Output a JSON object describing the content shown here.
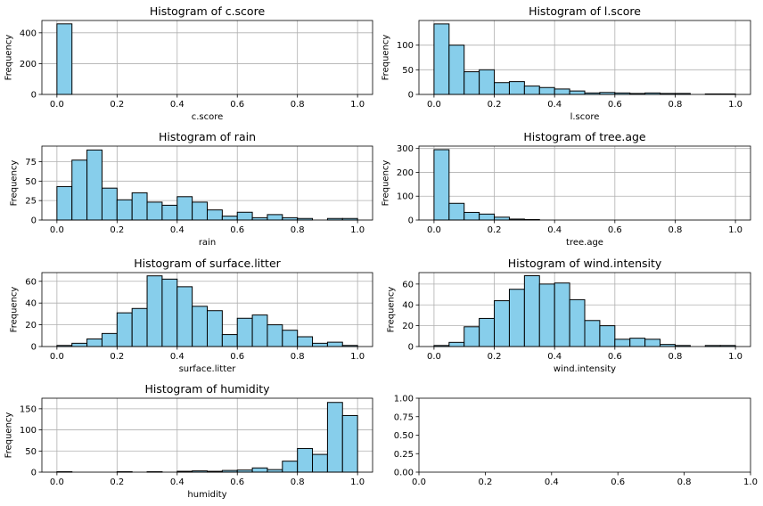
{
  "chart_data": [
    {
      "type": "bar",
      "title": "Histogram of c.score",
      "xlabel": "c.score",
      "ylabel": "Frequency",
      "xlim": [
        -0.05,
        1.05
      ],
      "ylim": [
        0,
        480
      ],
      "xticks": [
        0.0,
        0.2,
        0.4,
        0.6,
        0.8,
        1.0
      ],
      "xtick_labels": [
        "0.0",
        "0.2",
        "0.4",
        "0.6",
        "0.8",
        "1.0"
      ],
      "yticks": [
        0,
        200,
        400
      ],
      "ytick_labels": [
        "0",
        "200",
        "400"
      ],
      "bin_edges": [
        0.0,
        0.05,
        0.1,
        0.15,
        0.2,
        0.25,
        0.3,
        0.35,
        0.4,
        0.45,
        0.5,
        0.55,
        0.6,
        0.65,
        0.7,
        0.75,
        0.8,
        0.85,
        0.9,
        0.95,
        1.0
      ],
      "counts": [
        458,
        0,
        0,
        0,
        0,
        0,
        0,
        0,
        0,
        0,
        0,
        0,
        0,
        0,
        0,
        0,
        0,
        0,
        0,
        0
      ],
      "grid": true,
      "bar_color": "#87ceeb",
      "edge_color": "#000000"
    },
    {
      "type": "bar",
      "title": "Histogram of l.score",
      "xlabel": "l.score",
      "ylabel": "Frequency",
      "xlim": [
        -0.05,
        1.05
      ],
      "ylim": [
        0,
        150
      ],
      "xticks": [
        0.0,
        0.2,
        0.4,
        0.6,
        0.8,
        1.0
      ],
      "xtick_labels": [
        "0.0",
        "0.2",
        "0.4",
        "0.6",
        "0.8",
        "1.0"
      ],
      "yticks": [
        0,
        50,
        100
      ],
      "ytick_labels": [
        "0",
        "50",
        "100"
      ],
      "bin_edges": [
        0.0,
        0.05,
        0.1,
        0.15,
        0.2,
        0.25,
        0.3,
        0.35,
        0.4,
        0.45,
        0.5,
        0.55,
        0.6,
        0.65,
        0.7,
        0.75,
        0.8,
        0.85,
        0.9,
        0.95,
        1.0
      ],
      "counts": [
        143,
        100,
        46,
        50,
        24,
        26,
        17,
        14,
        11,
        7,
        3,
        4,
        3,
        2,
        3,
        2,
        2,
        0,
        1,
        1
      ],
      "grid": true,
      "bar_color": "#87ceeb",
      "edge_color": "#000000"
    },
    {
      "type": "bar",
      "title": "Histogram of rain",
      "xlabel": "rain",
      "ylabel": "Frequency",
      "xlim": [
        -0.05,
        1.05
      ],
      "ylim": [
        0,
        95
      ],
      "xticks": [
        0.0,
        0.2,
        0.4,
        0.6,
        0.8,
        1.0
      ],
      "xtick_labels": [
        "0.0",
        "0.2",
        "0.4",
        "0.6",
        "0.8",
        "1.0"
      ],
      "yticks": [
        0,
        25,
        50,
        75
      ],
      "ytick_labels": [
        "0",
        "25",
        "50",
        "75"
      ],
      "bin_edges": [
        0.0,
        0.05,
        0.1,
        0.15,
        0.2,
        0.25,
        0.3,
        0.35,
        0.4,
        0.45,
        0.5,
        0.55,
        0.6,
        0.65,
        0.7,
        0.75,
        0.8,
        0.85,
        0.9,
        0.95,
        1.0
      ],
      "counts": [
        43,
        77,
        90,
        41,
        26,
        35,
        23,
        19,
        30,
        23,
        13,
        5,
        10,
        3,
        7,
        3,
        2,
        0,
        2,
        2
      ],
      "grid": true,
      "bar_color": "#87ceeb",
      "edge_color": "#000000"
    },
    {
      "type": "bar",
      "title": "Histogram of tree.age",
      "xlabel": "tree.age",
      "ylabel": "Frequency",
      "xlim": [
        -0.05,
        1.05
      ],
      "ylim": [
        0,
        310
      ],
      "xticks": [
        0.0,
        0.2,
        0.4,
        0.6,
        0.8,
        1.0
      ],
      "xtick_labels": [
        "0.0",
        "0.2",
        "0.4",
        "0.6",
        "0.8",
        "1.0"
      ],
      "yticks": [
        0,
        100,
        200,
        300
      ],
      "ytick_labels": [
        "0",
        "100",
        "200",
        "300"
      ],
      "bin_edges": [
        0.0,
        0.05,
        0.1,
        0.15,
        0.2,
        0.25,
        0.3,
        0.35,
        0.4,
        0.45,
        0.5,
        0.55,
        0.6,
        0.65,
        0.7,
        0.75,
        0.8,
        0.85,
        0.9,
        0.95,
        1.0
      ],
      "counts": [
        295,
        70,
        32,
        25,
        12,
        4,
        2,
        0,
        0,
        0,
        0,
        0,
        0,
        0,
        0,
        0,
        0,
        0,
        0,
        0
      ],
      "grid": true,
      "bar_color": "#87ceeb",
      "edge_color": "#000000"
    },
    {
      "type": "bar",
      "title": "Histogram of surface.litter",
      "xlabel": "surface.litter",
      "ylabel": "Frequency",
      "xlim": [
        -0.05,
        1.05
      ],
      "ylim": [
        0,
        68
      ],
      "xticks": [
        0.0,
        0.2,
        0.4,
        0.6,
        0.8,
        1.0
      ],
      "xtick_labels": [
        "0.0",
        "0.2",
        "0.4",
        "0.6",
        "0.8",
        "1.0"
      ],
      "yticks": [
        0,
        20,
        40,
        60
      ],
      "ytick_labels": [
        "0",
        "20",
        "40",
        "60"
      ],
      "bin_edges": [
        0.0,
        0.05,
        0.1,
        0.15,
        0.2,
        0.25,
        0.3,
        0.35,
        0.4,
        0.45,
        0.5,
        0.55,
        0.6,
        0.65,
        0.7,
        0.75,
        0.8,
        0.85,
        0.9,
        0.95,
        1.0
      ],
      "counts": [
        1,
        3,
        7,
        12,
        31,
        35,
        65,
        62,
        55,
        37,
        33,
        11,
        26,
        29,
        20,
        15,
        9,
        3,
        4,
        1
      ],
      "grid": true,
      "bar_color": "#87ceeb",
      "edge_color": "#000000"
    },
    {
      "type": "bar",
      "title": "Histogram of wind.intensity",
      "xlabel": "wind.intensity",
      "ylabel": "Frequency",
      "xlim": [
        -0.05,
        1.05
      ],
      "ylim": [
        0,
        71
      ],
      "xticks": [
        0.0,
        0.2,
        0.4,
        0.6,
        0.8,
        1.0
      ],
      "xtick_labels": [
        "0.0",
        "0.2",
        "0.4",
        "0.6",
        "0.8",
        "1.0"
      ],
      "yticks": [
        0,
        20,
        40,
        60
      ],
      "ytick_labels": [
        "0",
        "20",
        "40",
        "60"
      ],
      "bin_edges": [
        0.0,
        0.05,
        0.1,
        0.15,
        0.2,
        0.25,
        0.3,
        0.35,
        0.4,
        0.45,
        0.5,
        0.55,
        0.6,
        0.65,
        0.7,
        0.75,
        0.8,
        0.85,
        0.9,
        0.95,
        1.0
      ],
      "counts": [
        1,
        4,
        19,
        27,
        44,
        55,
        68,
        60,
        61,
        45,
        25,
        20,
        7,
        8,
        7,
        2,
        1,
        0,
        1,
        1
      ],
      "grid": true,
      "bar_color": "#87ceeb",
      "edge_color": "#000000"
    },
    {
      "type": "bar",
      "title": "Histogram of humidity",
      "xlabel": "humidity",
      "ylabel": "Frequency",
      "xlim": [
        -0.05,
        1.05
      ],
      "ylim": [
        0,
        175
      ],
      "xticks": [
        0.0,
        0.2,
        0.4,
        0.6,
        0.8,
        1.0
      ],
      "xtick_labels": [
        "0.0",
        "0.2",
        "0.4",
        "0.6",
        "0.8",
        "1.0"
      ],
      "yticks": [
        0,
        50,
        100,
        150
      ],
      "ytick_labels": [
        "0",
        "50",
        "100",
        "150"
      ],
      "bin_edges": [
        0.0,
        0.05,
        0.1,
        0.15,
        0.2,
        0.25,
        0.3,
        0.35,
        0.4,
        0.45,
        0.5,
        0.55,
        0.6,
        0.65,
        0.7,
        0.75,
        0.8,
        0.85,
        0.9,
        0.95,
        1.0
      ],
      "counts": [
        1,
        0,
        0,
        0,
        1,
        0,
        1,
        0,
        2,
        3,
        2,
        4,
        5,
        10,
        6,
        26,
        56,
        42,
        165,
        134
      ],
      "grid": true,
      "bar_color": "#87ceeb",
      "edge_color": "#000000"
    },
    {
      "type": "empty",
      "title": "",
      "xlabel": "",
      "ylabel": "",
      "xlim": [
        0,
        1
      ],
      "ylim": [
        0,
        1
      ],
      "xticks": [
        0.0,
        0.2,
        0.4,
        0.6,
        0.8,
        1.0
      ],
      "xtick_labels": [
        "0.0",
        "0.2",
        "0.4",
        "0.6",
        "0.8",
        "1.0"
      ],
      "yticks": [
        0.0,
        0.25,
        0.5,
        0.75,
        1.0
      ],
      "ytick_labels": [
        "0.00",
        "0.25",
        "0.50",
        "0.75",
        "1.00"
      ],
      "bin_edges": [],
      "counts": [],
      "grid": false
    }
  ]
}
